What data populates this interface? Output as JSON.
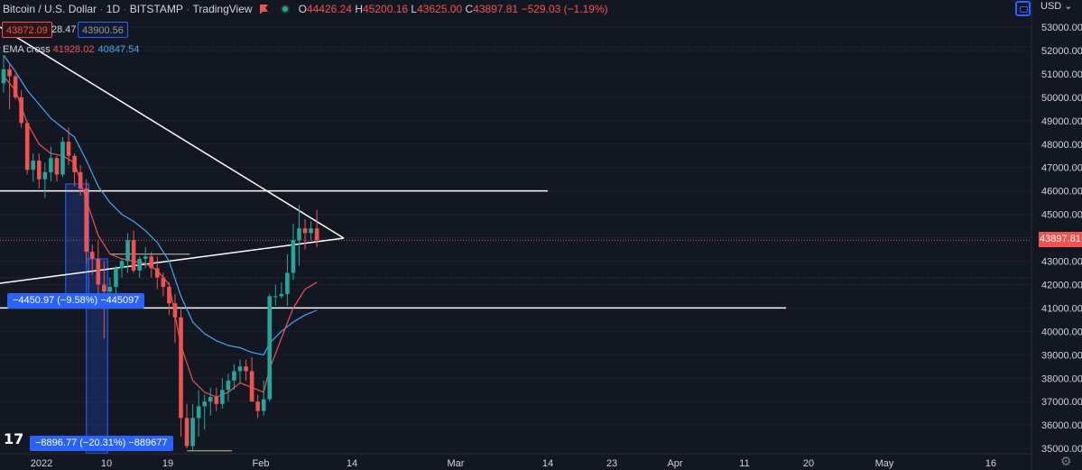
{
  "header": {
    "symbol": "Bitcoin / U.S. Dollar",
    "interval": "1D",
    "exchange": "BITSTAMP",
    "source": "TradingView",
    "open_key": "O",
    "open": "44426.24",
    "high_key": "H",
    "high": "45200.16",
    "low_key": "L",
    "low": "43625.00",
    "close_key": "C",
    "close": "43897.81",
    "change": "−529.03 (−1.19%)"
  },
  "quote": {
    "bid": "43872.09",
    "spread": "28.47",
    "ask": "43900.56"
  },
  "indicator": {
    "name": "EMA cross",
    "fast": "41928.02",
    "slow": "40847.54"
  },
  "measure_labels": {
    "upper": "−4450.97 (−9.58%) −445097",
    "lower": "−8896.77 (−20.31%) −889677"
  },
  "price_axis": {
    "currency": "USD",
    "last_price_tag": "43897.81",
    "ticks": [
      "53000.00",
      "52000.00",
      "51000.00",
      "50000.00",
      "49000.00",
      "48000.00",
      "47000.00",
      "46000.00",
      "45000.00",
      "44000.00",
      "43000.00",
      "42000.00",
      "41000.00",
      "40000.00",
      "39000.00",
      "38000.00",
      "37000.00",
      "36000.00",
      "35000.00"
    ]
  },
  "time_axis": {
    "ticks": [
      "2022",
      "10",
      "19",
      "Feb",
      "14",
      "Mar",
      "14",
      "23",
      "Apr",
      "11",
      "20",
      "May",
      "16"
    ]
  },
  "logo_text": "17",
  "colors": {
    "background": "#131722",
    "up": "#26a69a",
    "down": "#ef5350",
    "ema_fast": "#ef5350",
    "ema_slow": "#42a5f5",
    "drawing": "#ffffff",
    "accent": "#2962ff"
  },
  "chart_data": {
    "type": "candlestick",
    "ylim": [
      34800,
      53400
    ],
    "levels": [
      46000,
      41000
    ],
    "candles": [
      {
        "o": 50600,
        "h": 51800,
        "l": 50200,
        "c": 51200
      },
      {
        "o": 51200,
        "h": 51400,
        "l": 49500,
        "c": 50900
      },
      {
        "o": 50900,
        "h": 51000,
        "l": 49900,
        "c": 50000
      },
      {
        "o": 50000,
        "h": 50300,
        "l": 48700,
        "c": 48900
      },
      {
        "o": 48900,
        "h": 49000,
        "l": 46700,
        "c": 46900
      },
      {
        "o": 46900,
        "h": 47600,
        "l": 46400,
        "c": 47300
      },
      {
        "o": 47300,
        "h": 47600,
        "l": 46100,
        "c": 46500
      },
      {
        "o": 46500,
        "h": 47200,
        "l": 45700,
        "c": 46800
      },
      {
        "o": 46800,
        "h": 47900,
        "l": 46400,
        "c": 47400
      },
      {
        "o": 47400,
        "h": 47500,
        "l": 46400,
        "c": 46700
      },
      {
        "o": 46700,
        "h": 48300,
        "l": 46600,
        "c": 48100
      },
      {
        "o": 48100,
        "h": 48700,
        "l": 47100,
        "c": 47500
      },
      {
        "o": 47500,
        "h": 47600,
        "l": 46200,
        "c": 46800
      },
      {
        "o": 46800,
        "h": 47100,
        "l": 45800,
        "c": 46100
      },
      {
        "o": 46100,
        "h": 46500,
        "l": 42900,
        "c": 43400
      },
      {
        "o": 43400,
        "h": 43700,
        "l": 42400,
        "c": 43100
      },
      {
        "o": 43100,
        "h": 43900,
        "l": 41600,
        "c": 42000
      },
      {
        "o": 42000,
        "h": 43000,
        "l": 39700,
        "c": 41700
      },
      {
        "o": 41700,
        "h": 42300,
        "l": 41300,
        "c": 41900
      },
      {
        "o": 41900,
        "h": 42800,
        "l": 41500,
        "c": 42700
      },
      {
        "o": 42700,
        "h": 43100,
        "l": 42300,
        "c": 43000
      },
      {
        "o": 43000,
        "h": 44200,
        "l": 42500,
        "c": 43900
      },
      {
        "o": 43900,
        "h": 44300,
        "l": 42500,
        "c": 42600
      },
      {
        "o": 42600,
        "h": 43200,
        "l": 42300,
        "c": 43100
      },
      {
        "o": 43100,
        "h": 43600,
        "l": 42700,
        "c": 43200
      },
      {
        "o": 43200,
        "h": 43400,
        "l": 42300,
        "c": 42700
      },
      {
        "o": 42700,
        "h": 43200,
        "l": 41800,
        "c": 42300
      },
      {
        "o": 42300,
        "h": 42500,
        "l": 41500,
        "c": 41900
      },
      {
        "o": 41900,
        "h": 42100,
        "l": 40700,
        "c": 41200
      },
      {
        "o": 41200,
        "h": 41600,
        "l": 39500,
        "c": 40600
      },
      {
        "o": 40600,
        "h": 41000,
        "l": 35500,
        "c": 36300
      },
      {
        "o": 36300,
        "h": 36900,
        "l": 35000,
        "c": 35100
      },
      {
        "o": 35100,
        "h": 36900,
        "l": 34900,
        "c": 36300
      },
      {
        "o": 36300,
        "h": 37500,
        "l": 35500,
        "c": 36800
      },
      {
        "o": 36800,
        "h": 37300,
        "l": 35800,
        "c": 37000
      },
      {
        "o": 37000,
        "h": 37600,
        "l": 36400,
        "c": 37200
      },
      {
        "o": 37200,
        "h": 37600,
        "l": 36600,
        "c": 36900
      },
      {
        "o": 36900,
        "h": 38000,
        "l": 36700,
        "c": 37500
      },
      {
        "o": 37500,
        "h": 38200,
        "l": 37000,
        "c": 37900
      },
      {
        "o": 37900,
        "h": 38600,
        "l": 37500,
        "c": 38300
      },
      {
        "o": 38300,
        "h": 38800,
        "l": 37800,
        "c": 38500
      },
      {
        "o": 38500,
        "h": 38800,
        "l": 37900,
        "c": 38300
      },
      {
        "o": 38300,
        "h": 38900,
        "l": 37000,
        "c": 37000
      },
      {
        "o": 37000,
        "h": 37300,
        "l": 36300,
        "c": 36600
      },
      {
        "o": 36600,
        "h": 37900,
        "l": 36400,
        "c": 37100
      },
      {
        "o": 37100,
        "h": 41600,
        "l": 37000,
        "c": 41500
      },
      {
        "o": 41500,
        "h": 42000,
        "l": 41100,
        "c": 41500
      },
      {
        "o": 41500,
        "h": 42100,
        "l": 41400,
        "c": 41600
      },
      {
        "o": 41600,
        "h": 43300,
        "l": 41100,
        "c": 42500
      },
      {
        "o": 42500,
        "h": 44600,
        "l": 42200,
        "c": 43900
      },
      {
        "o": 43900,
        "h": 45400,
        "l": 42800,
        "c": 44400
      },
      {
        "o": 44400,
        "h": 44800,
        "l": 43500,
        "c": 44200
      },
      {
        "o": 44200,
        "h": 44700,
        "l": 43900,
        "c": 44400
      },
      {
        "o": 44400,
        "h": 45200,
        "l": 43600,
        "c": 43900
      }
    ],
    "ema_fast": [
      [
        0,
        50900
      ],
      [
        2,
        50300
      ],
      [
        4,
        48900
      ],
      [
        6,
        48000
      ],
      [
        8,
        47600
      ],
      [
        10,
        47500
      ],
      [
        12,
        47200
      ],
      [
        14,
        45600
      ],
      [
        16,
        44100
      ],
      [
        18,
        43300
      ],
      [
        20,
        43100
      ],
      [
        22,
        43000
      ],
      [
        24,
        42900
      ],
      [
        26,
        42600
      ],
      [
        28,
        42000
      ],
      [
        30,
        39400
      ],
      [
        32,
        37900
      ],
      [
        34,
        37400
      ],
      [
        36,
        37200
      ],
      [
        38,
        37400
      ],
      [
        40,
        37800
      ],
      [
        42,
        37600
      ],
      [
        44,
        37400
      ],
      [
        45,
        38400
      ],
      [
        47,
        39700
      ],
      [
        49,
        41000
      ],
      [
        51,
        41800
      ],
      [
        53,
        42100
      ]
    ],
    "ema_slow": [
      [
        0,
        51800
      ],
      [
        2,
        51100
      ],
      [
        4,
        50300
      ],
      [
        6,
        49700
      ],
      [
        8,
        49100
      ],
      [
        10,
        48700
      ],
      [
        12,
        48300
      ],
      [
        14,
        47300
      ],
      [
        16,
        46200
      ],
      [
        18,
        45500
      ],
      [
        20,
        45000
      ],
      [
        22,
        44700
      ],
      [
        24,
        44300
      ],
      [
        26,
        43800
      ],
      [
        28,
        43000
      ],
      [
        30,
        41500
      ],
      [
        32,
        40400
      ],
      [
        34,
        39900
      ],
      [
        36,
        39600
      ],
      [
        38,
        39400
      ],
      [
        40,
        39300
      ],
      [
        42,
        39100
      ],
      [
        44,
        39000
      ],
      [
        45,
        39500
      ],
      [
        47,
        40000
      ],
      [
        49,
        40400
      ],
      [
        51,
        40700
      ],
      [
        53,
        40900
      ]
    ]
  }
}
